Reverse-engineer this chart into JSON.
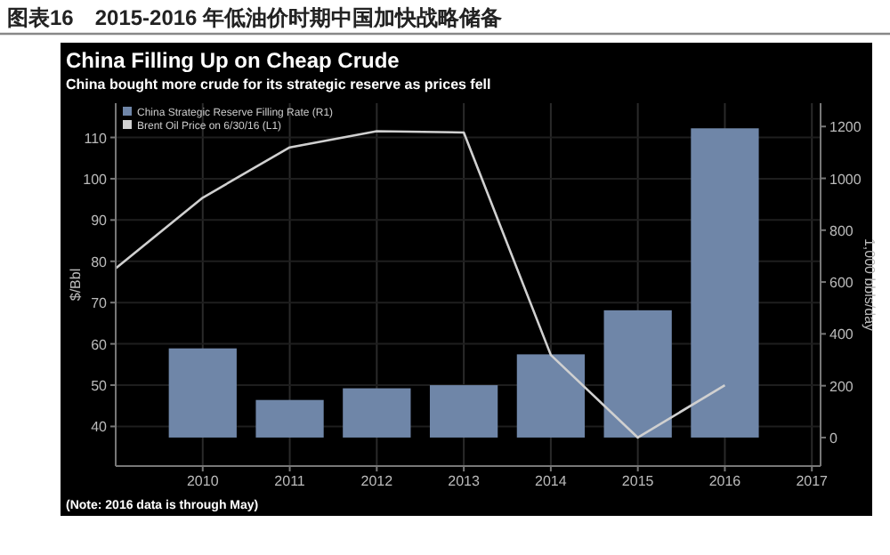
{
  "chart_data": {
    "type": "bar",
    "title": "图表16　2015-2016 年低油价时期中国加快战略储备",
    "subtitle": "China Filling Up on Cheap Crude",
    "annotations": [
      "China bought more crude for its strategic reserve as prices fell",
      "(Note: 2016 data is through May)"
    ],
    "ylabel": "$/Bbl",
    "y2label": "1,000 bbls/day",
    "xlim": [
      2009,
      2017.1
    ],
    "xticks": [
      2010,
      2011,
      2012,
      2013,
      2014,
      2015,
      2016,
      2017
    ],
    "ylim": [
      30.4,
      118.3
    ],
    "yticks": [
      40,
      50,
      60,
      70,
      80,
      90,
      100,
      110
    ],
    "y2lim": [
      -110,
      1290
    ],
    "y2ticks": [
      0,
      200,
      400,
      600,
      800,
      1000,
      1200
    ],
    "series": [
      {
        "name": "China Strategic Reserve Filling Rate (R1)",
        "axis": "y2",
        "color": "#6f86a8",
        "x": [
          2010,
          2011,
          2012,
          2013,
          2014,
          2015,
          2016
        ],
        "values": [
          344,
          145,
          190,
          202,
          321,
          491,
          1193
        ]
      },
      {
        "name": "Brent Oil Price on 6/30/16 (L1)",
        "type": "line",
        "axis": "y",
        "color": "#d0d0d0",
        "x": [
          2009,
          2010,
          2011,
          2012,
          2013,
          2014,
          2015,
          2016
        ],
        "values": [
          78.3,
          95.4,
          107.6,
          111.5,
          111.2,
          57.3,
          37.3,
          50.0
        ]
      }
    ],
    "grid": true,
    "legend": "top left"
  }
}
